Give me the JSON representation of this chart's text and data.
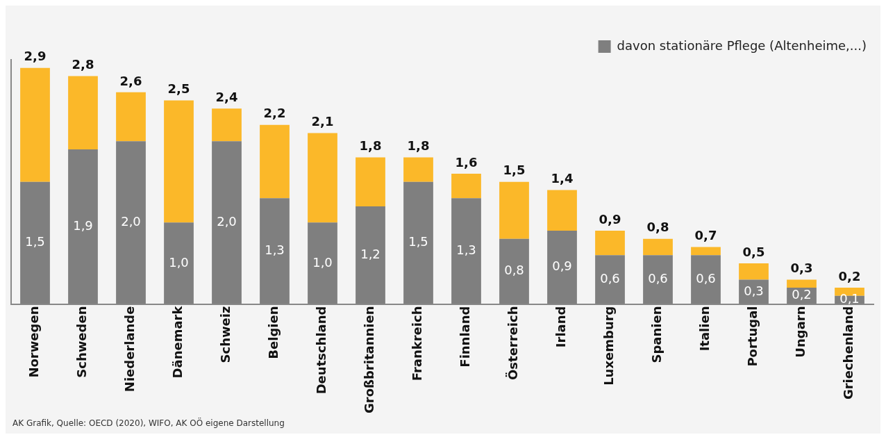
{
  "chart_data": {
    "type": "bar",
    "stacked": true,
    "legend": "top right",
    "grid": false,
    "categories": [
      "Norwegen",
      "Schweden",
      "Niederlande",
      "Dänemark",
      "Schweiz",
      "Belgien",
      "Deutschland",
      "Großbritannien",
      "Frankreich",
      "Finnland",
      "Österreich",
      "Irland",
      "Luxemburg",
      "Spanien",
      "Italien",
      "Portugal",
      "Ungarn",
      "Griechenland"
    ],
    "series": [
      {
        "name": "davon stationäre Pflege (Altenheime,...)",
        "color": "#7f7f7f",
        "values": [
          1.5,
          1.9,
          2.0,
          1.0,
          2.0,
          1.3,
          1.0,
          1.2,
          1.5,
          1.3,
          0.8,
          0.9,
          0.6,
          0.6,
          0.6,
          0.3,
          0.2,
          0.1
        ],
        "value_labels": [
          "1,5",
          "1,9",
          "2,0",
          "1,0",
          "2,0",
          "1,3",
          "1,0",
          "1,2",
          "1,5",
          "1,3",
          "0,8",
          "0,9",
          "0,6",
          "0,6",
          "0,6",
          "0,3",
          "0,2",
          "0,1"
        ]
      },
      {
        "color": "#fbb829",
        "values": [
          1.4,
          0.9,
          0.6,
          1.5,
          0.4,
          0.9,
          1.1,
          0.6,
          0.3,
          0.3,
          0.7,
          0.5,
          0.3,
          0.2,
          0.1,
          0.2,
          0.1,
          0.1
        ]
      }
    ],
    "totals": [
      "2,9",
      "2,8",
      "2,6",
      "2,5",
      "2,4",
      "2,2",
      "2,1",
      "1,8",
      "1,8",
      "1,6",
      "1,5",
      "1,4",
      "0,9",
      "0,8",
      "0,7",
      "0,5",
      "0,3",
      "0,2"
    ],
    "annotations": [
      "AK Grafik, Quelle: OECD (2020), WIFO, AK OÖ eigene Darstellung"
    ]
  }
}
